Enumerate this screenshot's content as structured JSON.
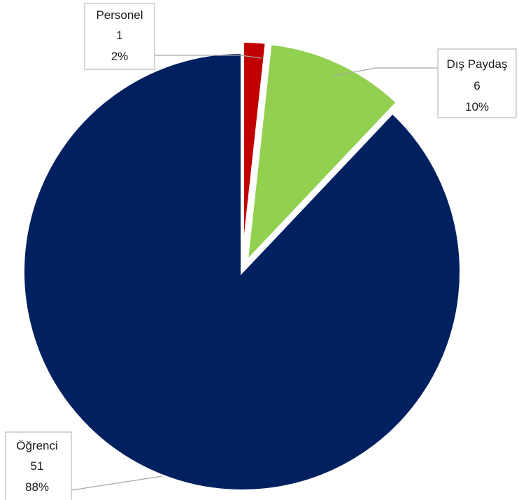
{
  "chart_data": {
    "type": "pie",
    "slices": [
      {
        "name": "Personel",
        "value": 1,
        "percent": "2%",
        "color": "#C00000",
        "exploded": true
      },
      {
        "name": "Dış Paydaş",
        "value": 6,
        "percent": "10%",
        "color": "#92D050",
        "exploded": true
      },
      {
        "name": "Öğrenci",
        "value": 51,
        "percent": "88%",
        "color": "#002060",
        "exploded": false
      }
    ],
    "legend": "none",
    "data_labels": "category, value, percent"
  }
}
